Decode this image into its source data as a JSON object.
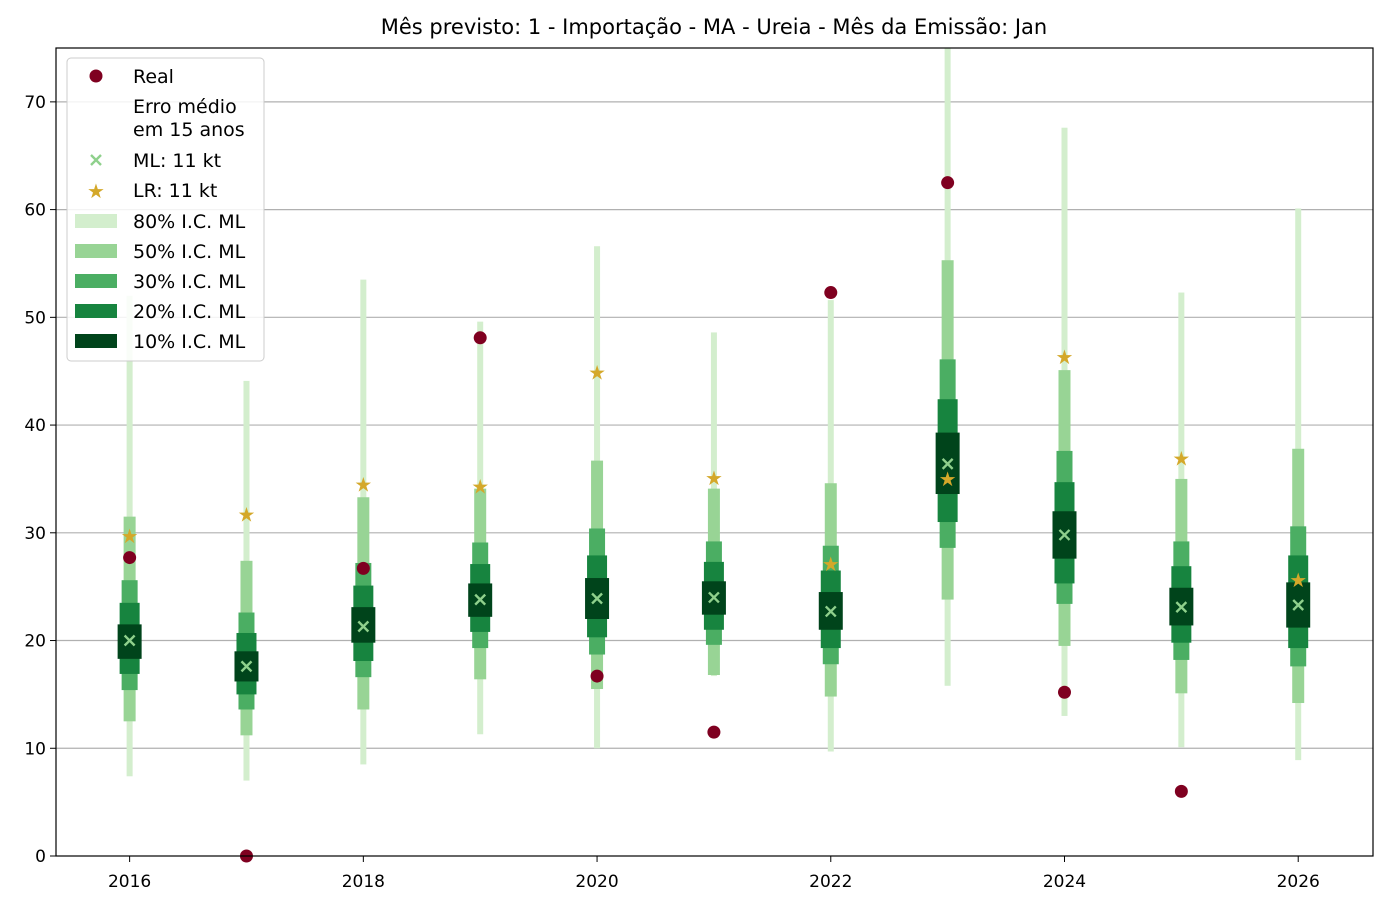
{
  "chart_data": {
    "type": "interval",
    "title": "Mês previsto: 1 - Importação - MA - Ureia - Mês da Emissão: Jan",
    "xlabel": "",
    "ylabel": "",
    "xlim": [
      2015.37,
      2026.64
    ],
    "ylim": [
      0,
      75
    ],
    "xticks": [
      2016,
      2018,
      2020,
      2022,
      2024,
      2026
    ],
    "yticks": [
      0,
      10,
      20,
      30,
      40,
      50,
      60,
      70
    ],
    "grid": "horizontal",
    "legend_position": "top-left",
    "colors": {
      "real": "#7f0020",
      "ml": "#8fd08c",
      "lr": "#d4a82a",
      "ci80": "#d3eecd",
      "ci50": "#98d495",
      "ci30": "#4bae63",
      "ci20": "#17843f",
      "ci10": "#00441b"
    },
    "legend": {
      "real": "Real",
      "erro_line1": "Erro médio",
      "erro_line2": "em 15 anos",
      "ml": "ML: 11 kt",
      "lr": "LR: 11 kt",
      "ci80": "80% I.C. ML",
      "ci50": "50% I.C. ML",
      "ci30": "30% I.C. ML",
      "ci20": "20% I.C. ML",
      "ci10": "10% I.C. ML"
    },
    "years": [
      2016,
      2017,
      2018,
      2019,
      2020,
      2021,
      2022,
      2023,
      2024,
      2025,
      2026
    ],
    "real": [
      27.7,
      0.0,
      26.7,
      48.1,
      16.7,
      11.5,
      52.3,
      62.5,
      15.2,
      6.0,
      null
    ],
    "ml": [
      20.0,
      17.6,
      21.3,
      23.8,
      23.9,
      24.0,
      22.7,
      36.4,
      29.8,
      23.1,
      23.3
    ],
    "lr": [
      29.7,
      31.7,
      34.5,
      34.3,
      44.9,
      35.1,
      27.1,
      35.0,
      46.3,
      36.9,
      25.6
    ],
    "ci80": [
      [
        7.4,
        52.0
      ],
      [
        7.0,
        44.1
      ],
      [
        8.5,
        53.5
      ],
      [
        11.3,
        49.6
      ],
      [
        10.0,
        56.6
      ],
      [
        16.7,
        48.6
      ],
      [
        9.7,
        51.6
      ],
      [
        15.8,
        77.0
      ],
      [
        13.0,
        67.6
      ],
      [
        10.1,
        52.3
      ],
      [
        8.9,
        60.1
      ]
    ],
    "ci50": [
      [
        12.5,
        31.5
      ],
      [
        11.2,
        27.4
      ],
      [
        13.6,
        33.3
      ],
      [
        16.4,
        34.1
      ],
      [
        15.5,
        36.7
      ],
      [
        16.8,
        34.1
      ],
      [
        14.8,
        34.6
      ],
      [
        23.8,
        55.3
      ],
      [
        19.5,
        45.1
      ],
      [
        15.1,
        35.0
      ],
      [
        14.2,
        37.8
      ]
    ],
    "ci30": [
      [
        15.4,
        25.6
      ],
      [
        13.6,
        22.6
      ],
      [
        16.6,
        27.2
      ],
      [
        19.3,
        29.1
      ],
      [
        18.7,
        30.4
      ],
      [
        19.6,
        29.2
      ],
      [
        17.8,
        28.8
      ],
      [
        28.6,
        46.1
      ],
      [
        23.4,
        37.6
      ],
      [
        18.2,
        29.2
      ],
      [
        17.6,
        30.6
      ]
    ],
    "ci20": [
      [
        16.9,
        23.5
      ],
      [
        15.0,
        20.7
      ],
      [
        18.1,
        25.1
      ],
      [
        20.8,
        27.1
      ],
      [
        20.3,
        27.9
      ],
      [
        21.0,
        27.3
      ],
      [
        19.3,
        26.5
      ],
      [
        31.0,
        42.4
      ],
      [
        25.3,
        34.7
      ],
      [
        19.8,
        26.9
      ],
      [
        19.3,
        27.9
      ]
    ],
    "ci10": [
      [
        18.3,
        21.5
      ],
      [
        16.2,
        19.0
      ],
      [
        19.8,
        23.1
      ],
      [
        22.2,
        25.3
      ],
      [
        22.0,
        25.8
      ],
      [
        22.4,
        25.5
      ],
      [
        21.0,
        24.5
      ],
      [
        33.6,
        39.3
      ],
      [
        27.6,
        32.0
      ],
      [
        21.4,
        24.9
      ],
      [
        21.2,
        25.4
      ]
    ]
  }
}
